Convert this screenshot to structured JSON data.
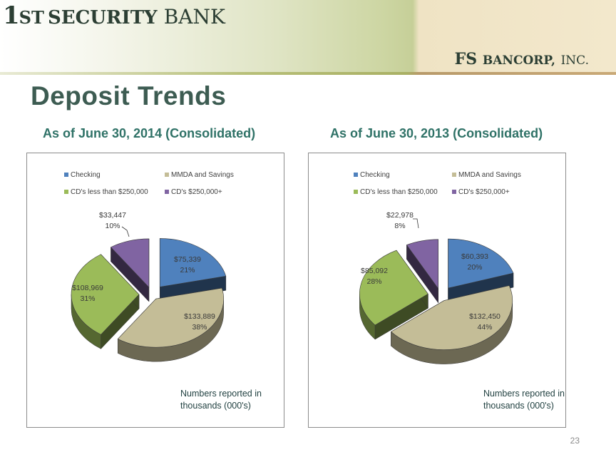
{
  "header": {
    "bank_logo_num": "1",
    "bank_logo_st": "ST",
    "bank_logo_security": "Security",
    "bank_logo_bank": "BANK",
    "bancorp_fs": "FS",
    "bancorp_name": "Bancorp,",
    "bancorp_inc": "INC."
  },
  "title": "Deposit Trends",
  "page_number": "23",
  "colors": {
    "checking": "#4f81bd",
    "mmda": "#c4bd97",
    "cds_small": "#9bbb59",
    "cds_large": "#8064a2",
    "title": "#3d5c52",
    "subtitle": "#2f7267"
  },
  "chart_data": [
    {
      "type": "pie",
      "title": "As of June 30, 2014 (Consolidated)",
      "legend": [
        "Checking",
        "MMDA and Savings",
        "CD's less than $250,000",
        "CD's $250,000+"
      ],
      "series": [
        {
          "name": "Checking",
          "value": 75339,
          "label": "$75,339",
          "percent": "21%"
        },
        {
          "name": "MMDA and Savings",
          "value": 133889,
          "label": "$133,889",
          "percent": "38%"
        },
        {
          "name": "CD's less than $250,000",
          "value": 108969,
          "label": "$108,969",
          "percent": "31%"
        },
        {
          "name": "CD's $250,000+",
          "value": 33447,
          "label": "$33,447",
          "percent": "10%"
        }
      ],
      "note_line1": "Numbers reported in",
      "note_line2": "thousands (000's)"
    },
    {
      "type": "pie",
      "title": "As of June 30, 2013 (Consolidated)",
      "legend": [
        "Checking",
        "MMDA and Savings",
        "CD's less than $250,000",
        "CD's $250,000+"
      ],
      "series": [
        {
          "name": "Checking",
          "value": 60393,
          "label": "$60,393",
          "percent": "20%"
        },
        {
          "name": "MMDA and Savings",
          "value": 132450,
          "label": "$132,450",
          "percent": "44%"
        },
        {
          "name": "CD's less than $250,000",
          "value": 85092,
          "label": "$85,092",
          "percent": "28%"
        },
        {
          "name": "CD's $250,000+",
          "value": 22978,
          "label": "$22,978",
          "percent": "8%"
        }
      ],
      "note_line1": "Numbers reported in",
      "note_line2": "thousands (000's)"
    }
  ]
}
